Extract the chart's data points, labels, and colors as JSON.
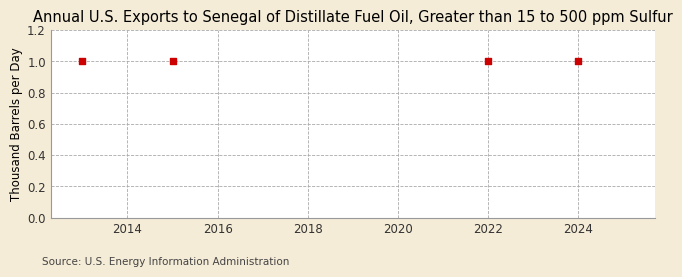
{
  "title": "Annual U.S. Exports to Senegal of Distillate Fuel Oil, Greater than 15 to 500 ppm Sulfur",
  "ylabel": "Thousand Barrels per Day",
  "source": "Source: U.S. Energy Information Administration",
  "data_x": [
    2013,
    2015,
    2022,
    2024
  ],
  "data_y": [
    1.0,
    1.0,
    1.0,
    1.0
  ],
  "marker_color": "#cc0000",
  "marker": "s",
  "marker_size": 4,
  "xlim": [
    2012.3,
    2025.7
  ],
  "ylim": [
    0.0,
    1.2
  ],
  "yticks": [
    0.0,
    0.2,
    0.4,
    0.6,
    0.8,
    1.0,
    1.2
  ],
  "xticks": [
    2014,
    2016,
    2018,
    2020,
    2022,
    2024
  ],
  "figure_bg": "#f5ecd7",
  "axes_bg": "#ffffff",
  "grid_color": "#aaaaaa",
  "grid_style": "--",
  "title_fontsize": 10.5,
  "label_fontsize": 8.5,
  "tick_fontsize": 8.5,
  "source_fontsize": 7.5
}
